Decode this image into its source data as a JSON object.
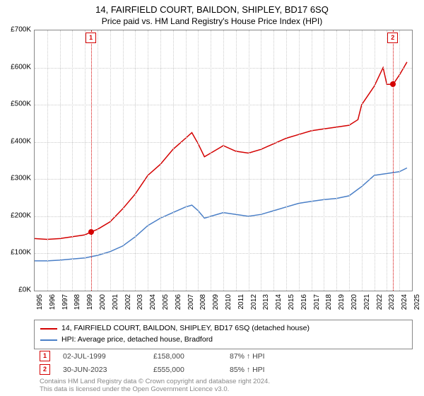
{
  "title": "14, FAIRFIELD COURT, BAILDON, SHIPLEY, BD17 6SQ",
  "subtitle": "Price paid vs. HM Land Registry's House Price Index (HPI)",
  "chart": {
    "type": "line",
    "background_color": "#ffffff",
    "border_color": "#888888",
    "grid_color": "#cccccc",
    "xlim": [
      1995,
      2025
    ],
    "ylim": [
      0,
      700000
    ],
    "ytick_step": 100000,
    "ytick_labels": [
      "£0K",
      "£100K",
      "£200K",
      "£300K",
      "£400K",
      "£500K",
      "£600K",
      "£700K"
    ],
    "xtick_step": 1,
    "xtick_labels": [
      "1995",
      "1996",
      "1997",
      "1998",
      "1999",
      "2000",
      "2001",
      "2002",
      "2003",
      "2004",
      "2005",
      "2006",
      "2007",
      "2008",
      "2009",
      "2010",
      "2011",
      "2012",
      "2013",
      "2014",
      "2015",
      "2016",
      "2017",
      "2018",
      "2019",
      "2020",
      "2021",
      "2022",
      "2023",
      "2024",
      "2025"
    ],
    "label_fontsize": 10,
    "title_fontsize": 13,
    "line_width": 1.5,
    "series": [
      {
        "name": "price",
        "label": "14, FAIRFIELD COURT, BAILDON, SHIPLEY, BD17 6SQ (detached house)",
        "color": "#d40000",
        "x": [
          1995,
          1996,
          1997,
          1998,
          1999,
          1999.5,
          2000,
          2001,
          2002,
          2003,
          2004,
          2005,
          2006,
          2007,
          2007.5,
          2008,
          2008.5,
          2009,
          2010,
          2011,
          2012,
          2013,
          2014,
          2015,
          2016,
          2017,
          2018,
          2019,
          2020,
          2020.7,
          2021,
          2022,
          2022.7,
          2023,
          2023.5,
          2024,
          2024.6
        ],
        "y": [
          140000,
          138000,
          140000,
          145000,
          150000,
          158000,
          165000,
          185000,
          220000,
          260000,
          310000,
          340000,
          380000,
          410000,
          425000,
          395000,
          360000,
          370000,
          390000,
          375000,
          370000,
          380000,
          395000,
          410000,
          420000,
          430000,
          435000,
          440000,
          445000,
          460000,
          500000,
          550000,
          600000,
          555000,
          555000,
          580000,
          615000
        ]
      },
      {
        "name": "hpi",
        "label": "HPI: Average price, detached house, Bradford",
        "color": "#4a7fc7",
        "x": [
          1995,
          1996,
          1997,
          1998,
          1999,
          2000,
          2001,
          2002,
          2003,
          2004,
          2005,
          2006,
          2007,
          2007.5,
          2008,
          2008.5,
          2009,
          2010,
          2011,
          2012,
          2013,
          2014,
          2015,
          2016,
          2017,
          2018,
          2019,
          2020,
          2021,
          2022,
          2023,
          2024,
          2024.6
        ],
        "y": [
          80000,
          80000,
          82000,
          85000,
          88000,
          95000,
          105000,
          120000,
          145000,
          175000,
          195000,
          210000,
          225000,
          230000,
          215000,
          195000,
          200000,
          210000,
          205000,
          200000,
          205000,
          215000,
          225000,
          235000,
          240000,
          245000,
          248000,
          255000,
          280000,
          310000,
          315000,
          320000,
          330000
        ]
      }
    ],
    "events": [
      {
        "n": "1",
        "x": 1999.5,
        "color": "#d40000",
        "date": "02-JUL-1999",
        "price": "£158,000",
        "rel": "87% ↑ HPI",
        "point_y": 158000
      },
      {
        "n": "2",
        "x": 2023.5,
        "color": "#d40000",
        "date": "30-JUN-2023",
        "price": "£555,000",
        "rel": "85% ↑ HPI",
        "point_y": 555000
      }
    ]
  },
  "legend_border_color": "#888888",
  "footnote_line1": "Contains HM Land Registry data © Crown copyright and database right 2024.",
  "footnote_line2": "This data is licensed under the Open Government Licence v3.0."
}
